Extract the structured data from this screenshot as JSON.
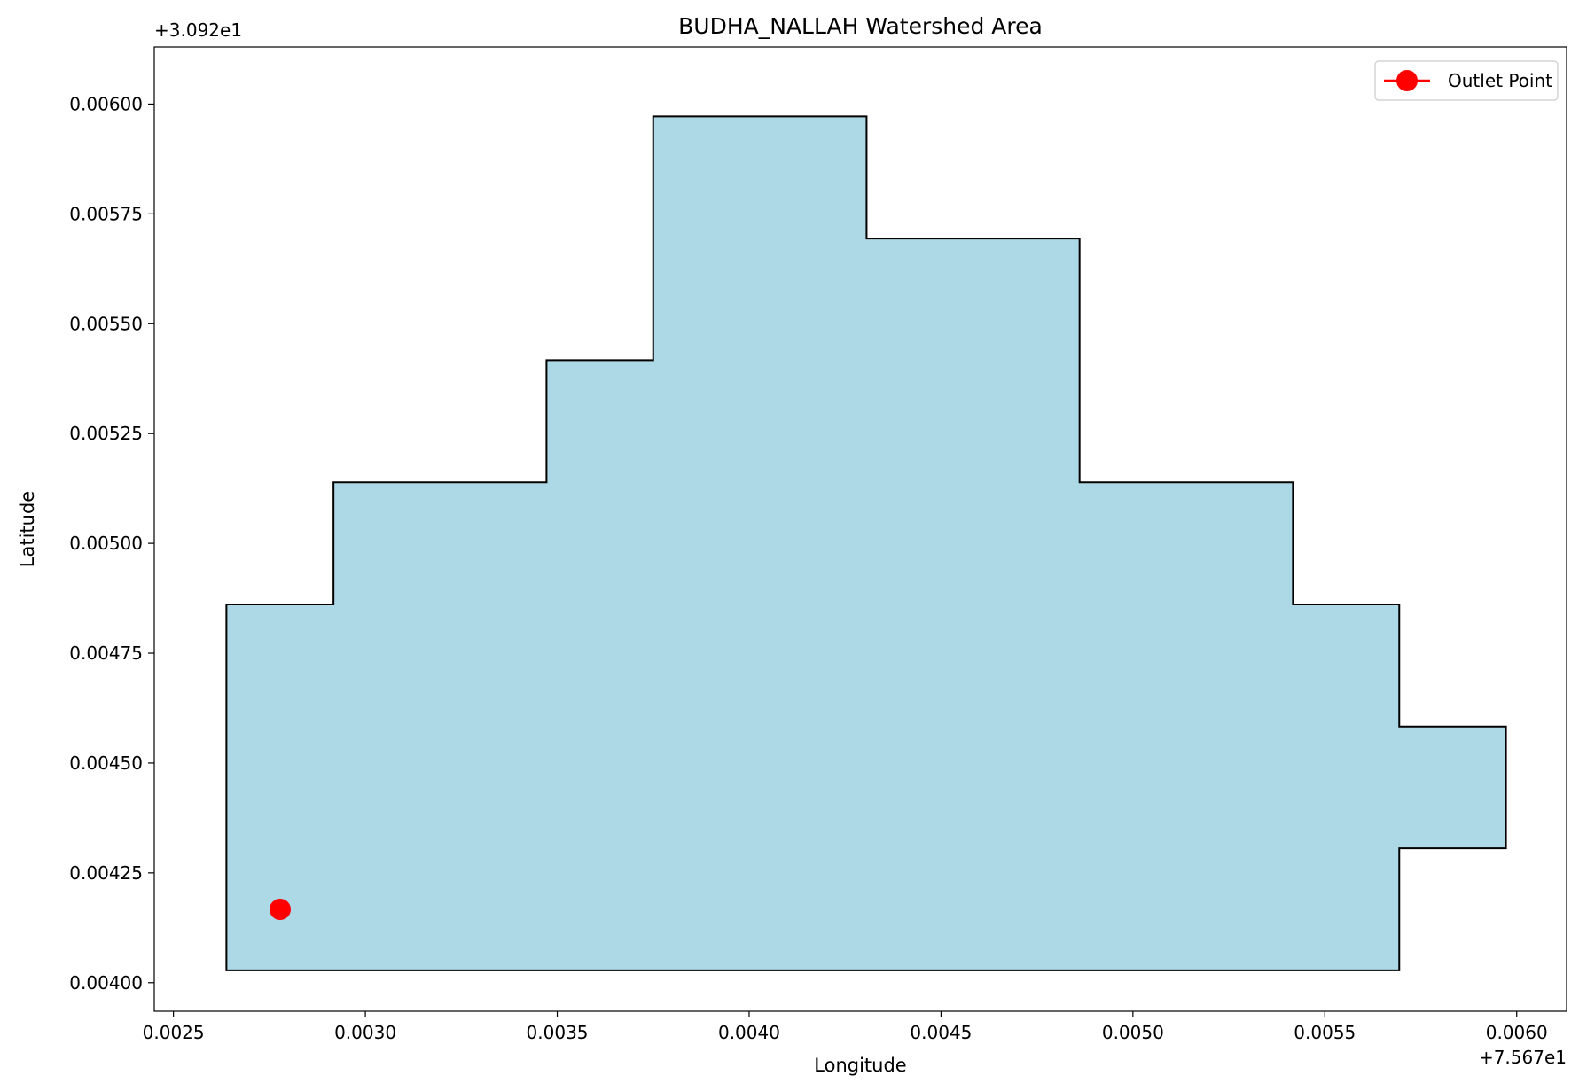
{
  "chart_data": {
    "type": "area",
    "title": "BUDHA_NALLAH Watershed Area",
    "xlabel": "Longitude",
    "ylabel": "Latitude",
    "x_offset_label": "+7.567e1",
    "y_offset_label": "+3.092e1",
    "xlim": [
      0.00245,
      0.00613
    ],
    "ylim": [
      0.003935,
      0.00613
    ],
    "x_ticks": [
      0.0025,
      0.003,
      0.0035,
      0.004,
      0.0045,
      0.005,
      0.0055,
      0.006
    ],
    "x_tick_labels": [
      "0.0025",
      "0.0030",
      "0.0035",
      "0.0040",
      "0.0045",
      "0.0050",
      "0.0055",
      "0.0060"
    ],
    "y_ticks": [
      0.004,
      0.00425,
      0.0045,
      0.00475,
      0.005,
      0.00525,
      0.0055,
      0.00575,
      0.006
    ],
    "y_tick_labels": [
      "0.00400",
      "0.00425",
      "0.00450",
      "0.00475",
      "0.00500",
      "0.00525",
      "0.00550",
      "0.00575",
      "0.00600"
    ],
    "series": [
      {
        "kind": "polygon",
        "fill": "#add8e6",
        "edge": "#000000",
        "points": [
          [
            0.002638,
            0.004028
          ],
          [
            0.002638,
            0.004861
          ],
          [
            0.002917,
            0.004861
          ],
          [
            0.002917,
            0.005139
          ],
          [
            0.003472,
            0.005139
          ],
          [
            0.003472,
            0.005417
          ],
          [
            0.00375,
            0.005417
          ],
          [
            0.00375,
            0.005972
          ],
          [
            0.004306,
            0.005972
          ],
          [
            0.004306,
            0.005694
          ],
          [
            0.004861,
            0.005694
          ],
          [
            0.004861,
            0.005139
          ],
          [
            0.005417,
            0.005139
          ],
          [
            0.005417,
            0.004861
          ],
          [
            0.005694,
            0.004861
          ],
          [
            0.005694,
            0.004583
          ],
          [
            0.005972,
            0.004583
          ],
          [
            0.005972,
            0.004306
          ],
          [
            0.005694,
            0.004306
          ],
          [
            0.005694,
            0.004028
          ]
        ]
      },
      {
        "kind": "point",
        "name": "Outlet Point",
        "color": "#ff0000",
        "x": 0.002778,
        "y": 0.004167
      }
    ],
    "legend": {
      "position": "top-right",
      "entries": [
        {
          "label": "Outlet Point",
          "color": "#ff0000"
        }
      ]
    },
    "grid": false
  }
}
